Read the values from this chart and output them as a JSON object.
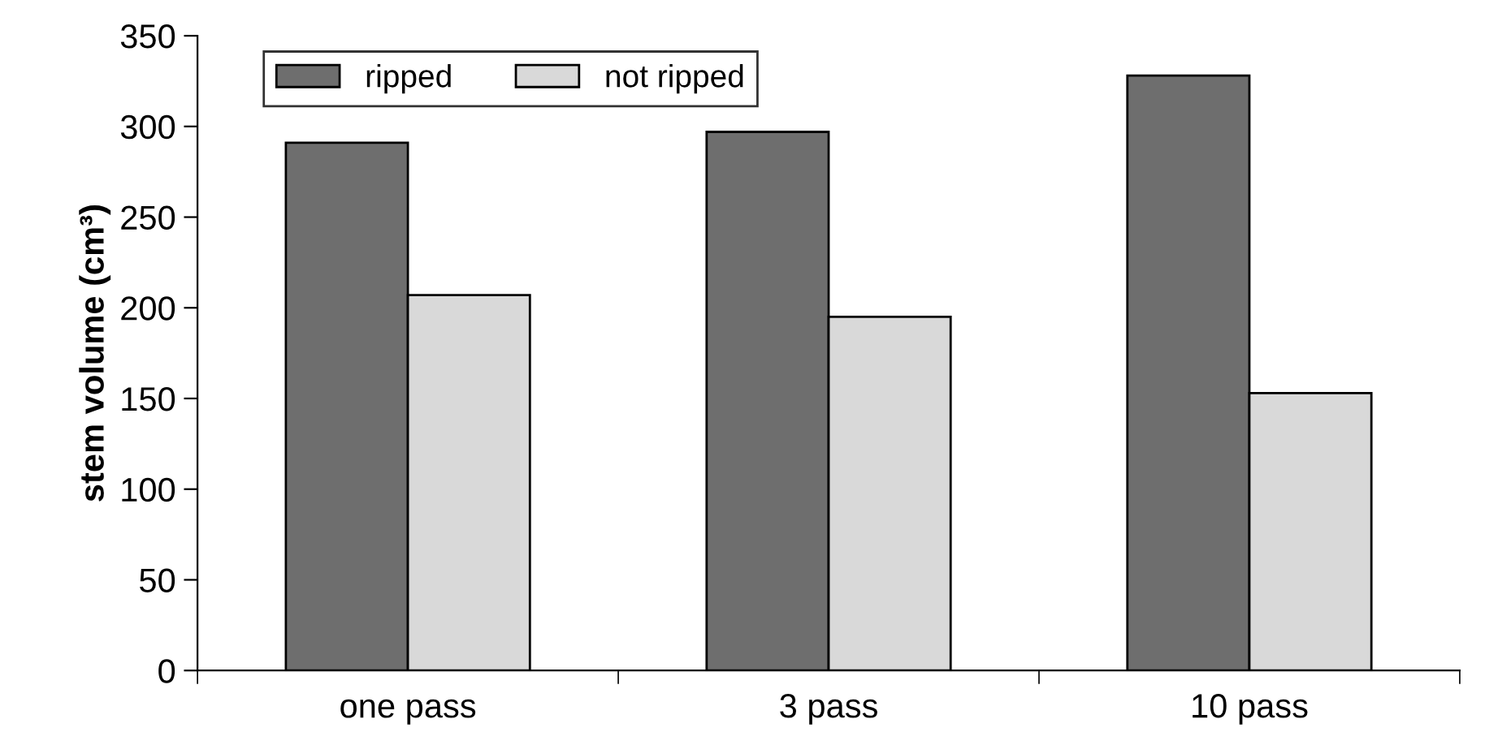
{
  "chart_data": {
    "type": "bar",
    "ylabel": "stem volume (cm³)",
    "categories": [
      "one pass",
      "3 pass",
      "10 pass"
    ],
    "series": [
      {
        "name": "ripped",
        "color": "#6e6e6e",
        "values": [
          291,
          297,
          328
        ]
      },
      {
        "name": "not ripped",
        "color": "#d9d9d9",
        "values": [
          207,
          195,
          153
        ]
      }
    ],
    "ylim": [
      0,
      350
    ],
    "yticks": [
      0,
      50,
      100,
      150,
      200,
      250,
      300,
      350
    ],
    "grid": false,
    "legend": "top left"
  }
}
